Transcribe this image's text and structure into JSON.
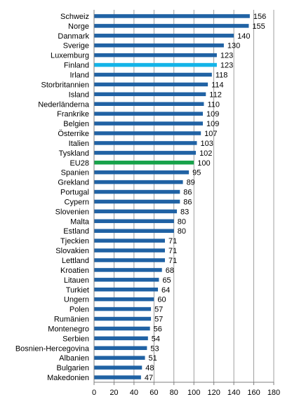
{
  "chart_data": {
    "type": "bar",
    "orientation": "horizontal",
    "title": "",
    "xlabel": "",
    "ylabel": "",
    "xlim": [
      0,
      180
    ],
    "x_ticks": [
      0,
      20,
      40,
      60,
      80,
      100,
      120,
      140,
      160,
      180
    ],
    "grid": "vertical",
    "legend": "none",
    "data_labels": true,
    "categories": [
      "Schweiz",
      "Norge",
      "Danmark",
      "Sverige",
      "Luxemburg",
      "Finland",
      "Irland",
      "Storbritannien",
      "Island",
      "Nederländerna",
      "Frankrike",
      "Belgien",
      "Österrike",
      "Italien",
      "Tyskland",
      "EU28",
      "Spanien",
      "Grekland",
      "Portugal",
      "Cypern",
      "Slovenien",
      "Malta",
      "Estland",
      "Tjeckien",
      "Slovakien",
      "Lettland",
      "Kroatien",
      "Litauen",
      "Turkiet",
      "Ungern",
      "Polen",
      "Rumänien",
      "Montenegro",
      "Serbien",
      "Bosnien-Hercegovina",
      "Albanien",
      "Bulgarien",
      "Makedonien"
    ],
    "values": [
      156,
      155,
      140,
      130,
      123,
      123,
      118,
      114,
      112,
      110,
      109,
      109,
      107,
      103,
      102,
      100,
      95,
      89,
      86,
      86,
      83,
      80,
      80,
      71,
      71,
      71,
      68,
      65,
      64,
      60,
      57,
      57,
      56,
      54,
      53,
      51,
      48,
      47
    ],
    "colors": {
      "default": "#2062A4",
      "Finland": "#14B4E8",
      "EU28": "#17A24A",
      "grid": "#7F7F7F",
      "axis": "#7F7F7F"
    }
  }
}
